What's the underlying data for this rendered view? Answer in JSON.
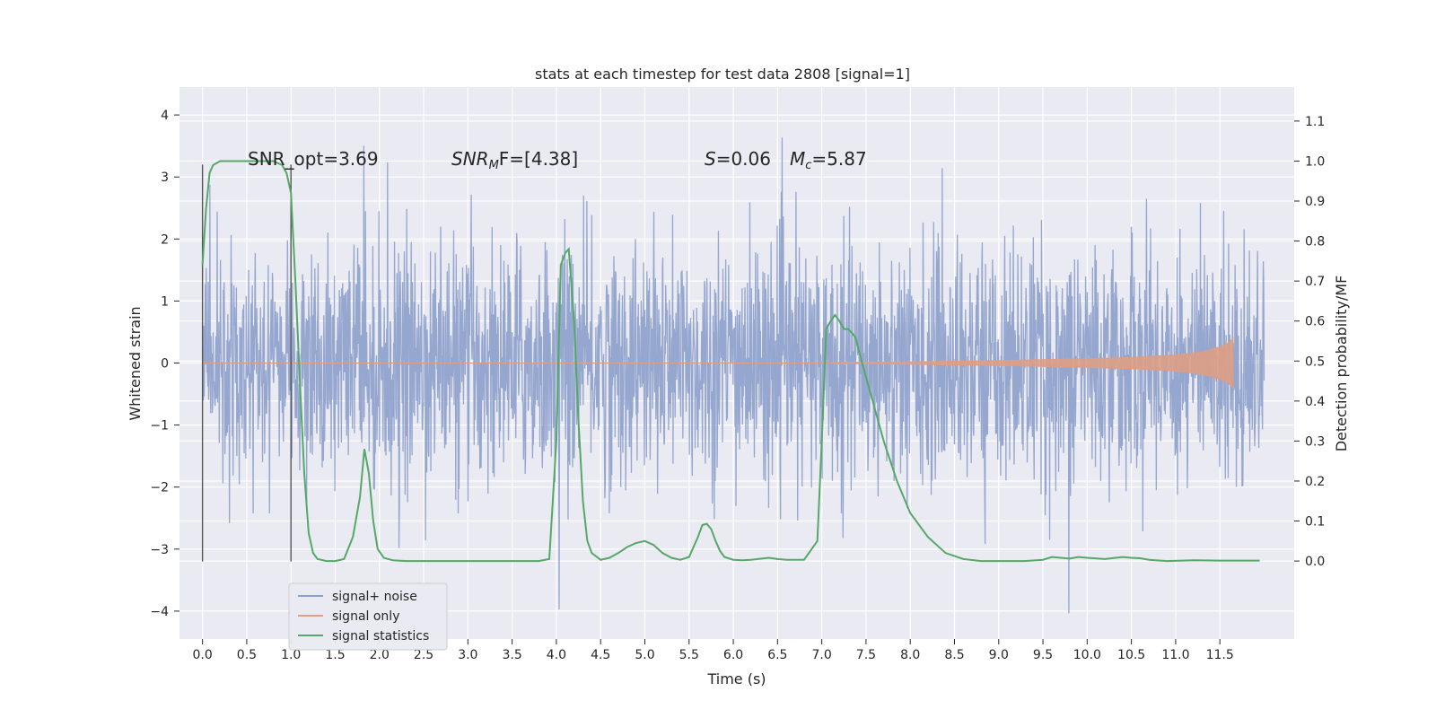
{
  "chart_data": {
    "type": "line",
    "title": "stats at each timestep for test data 2808 [signal=1]",
    "xlabel": "Time (s)",
    "ylabel": "Whitened strain",
    "y2label": "Detection probability/MF",
    "xlim": [
      -0.26,
      12.34
    ],
    "ylim": [
      -4.45,
      4.45
    ],
    "y2lim": [
      -0.195,
      1.185
    ],
    "xticks": [
      "0.0",
      "0.5",
      "1.0",
      "1.5",
      "2.0",
      "2.5",
      "3.0",
      "3.5",
      "4.0",
      "4.5",
      "5.0",
      "5.5",
      "6.0",
      "6.5",
      "7.0",
      "7.5",
      "8.0",
      "8.5",
      "9.0",
      "9.5",
      "10.0",
      "10.5",
      "11.0",
      "11.5"
    ],
    "yticks": [
      "4",
      "3",
      "2",
      "1",
      "0",
      "−1",
      "−2",
      "−3",
      "−4"
    ],
    "y2ticks": [
      "1.1",
      "1.0",
      "0.9",
      "0.8",
      "0.7",
      "0.6",
      "0.5",
      "0.4",
      "0.3",
      "0.2",
      "0.1",
      "0.0"
    ],
    "grid": true,
    "legend_placement": "lower-left",
    "annotations": {
      "snr_opt": "SNR_opt=3.69",
      "snr_mf_label": "SNR",
      "snr_mf_sub": "M",
      "snr_mf_rest": "F=[4.38]",
      "s_label": "S",
      "s_rest": "=0.06",
      "mc_label": "M",
      "mc_sub": "c",
      "mc_rest": "=5.87"
    },
    "vlines_x": [
      0.0,
      1.0
    ],
    "series": [
      {
        "name": "signal+ noise",
        "color": "#8c9fcb",
        "noise_band": {
          "x_start": 0.0,
          "x_end": 12.0,
          "typical_amplitude": 1.9,
          "peak_amplitude": 4.1,
          "min_value": -4.1
        }
      },
      {
        "name": "signal only",
        "color": "#dd9e85",
        "envelope": {
          "x": [
            7.0,
            8.0,
            9.0,
            10.0,
            10.5,
            11.0,
            11.3,
            11.5,
            11.6,
            11.65
          ],
          "amplitude": [
            0.005,
            0.02,
            0.04,
            0.07,
            0.09,
            0.13,
            0.18,
            0.26,
            0.33,
            0.4
          ]
        }
      },
      {
        "name": "signal statistics",
        "color": "#55a868",
        "x": [
          0.0,
          0.04,
          0.08,
          0.12,
          0.2,
          0.3,
          0.5,
          0.7,
          0.8,
          0.9,
          0.95,
          1.0,
          1.05,
          1.1,
          1.15,
          1.2,
          1.25,
          1.3,
          1.4,
          1.5,
          1.6,
          1.7,
          1.78,
          1.83,
          1.88,
          1.93,
          1.98,
          2.05,
          2.15,
          2.3,
          2.6,
          3.0,
          3.5,
          3.8,
          3.92,
          4.0,
          4.05,
          4.1,
          4.14,
          4.2,
          4.25,
          4.3,
          4.35,
          4.4,
          4.5,
          4.6,
          4.7,
          4.8,
          4.9,
          5.0,
          5.1,
          5.15,
          5.2,
          5.3,
          5.4,
          5.5,
          5.6,
          5.65,
          5.7,
          5.75,
          5.8,
          5.85,
          5.9,
          6.0,
          6.1,
          6.2,
          6.4,
          6.5,
          6.6,
          6.8,
          6.95,
          7.0,
          7.05,
          7.1,
          7.15,
          7.2,
          7.25,
          7.3,
          7.38,
          7.45,
          7.55,
          7.7,
          7.85,
          8.0,
          8.2,
          8.4,
          8.6,
          8.8,
          9.0,
          9.3,
          9.5,
          9.6,
          9.7,
          9.8,
          9.9,
          10.0,
          10.2,
          10.4,
          10.5,
          10.6,
          10.7,
          10.9,
          11.2,
          11.5,
          11.8,
          11.95
        ],
        "y": [
          0.74,
          0.88,
          0.97,
          0.99,
          1.0,
          1.0,
          1.0,
          1.0,
          1.0,
          0.99,
          0.97,
          0.92,
          0.7,
          0.45,
          0.22,
          0.07,
          0.02,
          0.005,
          0.0,
          0.0,
          0.005,
          0.06,
          0.16,
          0.28,
          0.22,
          0.1,
          0.03,
          0.008,
          0.002,
          0.0,
          0.0,
          0.0,
          0.0,
          0.0,
          0.005,
          0.3,
          0.74,
          0.77,
          0.78,
          0.6,
          0.35,
          0.15,
          0.05,
          0.02,
          0.003,
          0.008,
          0.02,
          0.035,
          0.045,
          0.05,
          0.04,
          0.03,
          0.02,
          0.008,
          0.003,
          0.01,
          0.06,
          0.09,
          0.093,
          0.08,
          0.05,
          0.025,
          0.01,
          0.003,
          0.002,
          0.003,
          0.008,
          0.005,
          0.003,
          0.003,
          0.05,
          0.3,
          0.58,
          0.6,
          0.615,
          0.6,
          0.58,
          0.58,
          0.56,
          0.5,
          0.42,
          0.3,
          0.2,
          0.12,
          0.06,
          0.02,
          0.005,
          0.0,
          0.0,
          0.0,
          0.003,
          0.01,
          0.008,
          0.006,
          0.01,
          0.008,
          0.005,
          0.01,
          0.008,
          0.007,
          0.003,
          0.0,
          0.002,
          0.001,
          0.001,
          0.001
        ]
      }
    ]
  }
}
